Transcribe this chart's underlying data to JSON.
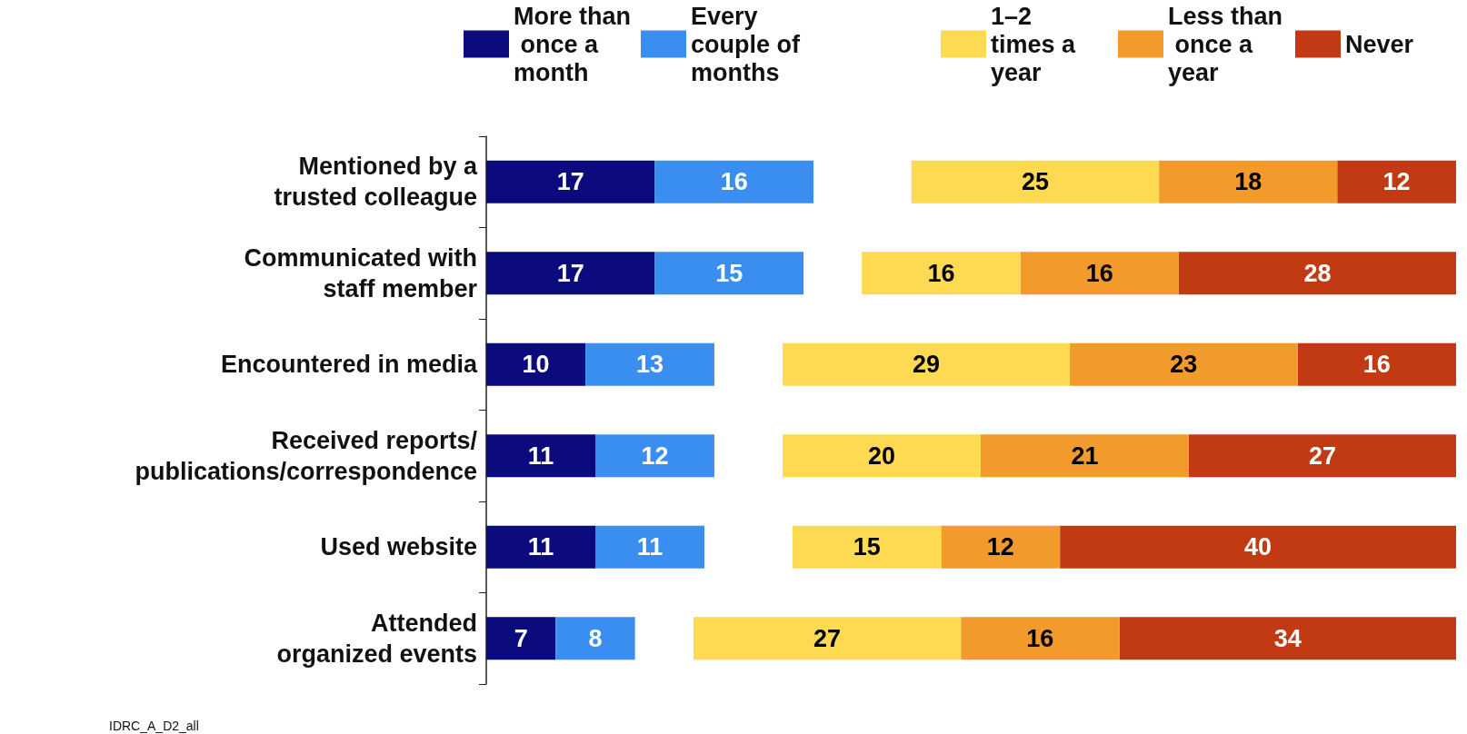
{
  "chart_data": [
    {
      "type": "bar",
      "orientation": "horizontal",
      "stacked": true,
      "data_labels": true,
      "legend": "top",
      "tick_labels": "y",
      "categories": [
        "Mentioned by a\ntrusted colleague",
        "Communicated with\nstaff member",
        "Encountered in media",
        "Received reports/\npublications/correspondence",
        "Used website",
        "Attended\norganized events"
      ],
      "series": [
        {
          "name": "More than once a month",
          "color": "#0b0b7e",
          "values": [
            17,
            17,
            10,
            11,
            11,
            7
          ]
        },
        {
          "name": "Every couple of months",
          "color": "#3a8ef0",
          "values": [
            16,
            15,
            13,
            12,
            11,
            8
          ]
        }
      ],
      "annotations": [
        "IDRC_A_D2_all"
      ]
    },
    {
      "type": "bar",
      "orientation": "horizontal",
      "stacked": true,
      "data_labels": true,
      "legend": "top right",
      "tick_labels": false,
      "categories": [
        null,
        null,
        null,
        null,
        null,
        null
      ],
      "xlim": [
        77,
        0
      ],
      "series": [
        {
          "name": "Never",
          "color": "#c13a14",
          "values": [
            12,
            28,
            16,
            27,
            40,
            34
          ]
        },
        {
          "name": "Less than once a year",
          "color": "#f29b2c",
          "values": [
            18,
            16,
            23,
            21,
            12,
            16
          ]
        },
        {
          "name": "1–2 times a year",
          "color": "#fdda52",
          "values": [
            25,
            16,
            29,
            20,
            15,
            27
          ]
        }
      ]
    }
  ]
}
